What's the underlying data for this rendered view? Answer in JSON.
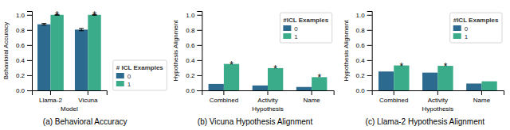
{
  "chart_data": [
    {
      "type": "bar",
      "title": "(a) Behavioral Accuracy",
      "xlabel": "Model",
      "ylabel": "Behavioral Accuracy",
      "categories": [
        "Llama-2",
        "Vicuna"
      ],
      "series": [
        {
          "name": "0",
          "color": "#2d6a8f",
          "values": [
            0.875,
            0.805
          ],
          "errors": [
            0.01,
            0.015
          ]
        },
        {
          "name": "1",
          "color": "#3aac8a",
          "values": [
            1.0,
            1.0
          ],
          "errors": [
            0.005,
            0.005
          ],
          "annotations": [
            "*",
            "*"
          ]
        }
      ],
      "ylim": [
        0,
        1.05
      ],
      "yticks": [
        {
          "value": 0,
          "label": "0.0"
        },
        0.2,
        0.4,
        0.6,
        0.8,
        {
          "value": 1.0,
          "label": "1.0"
        }
      ],
      "grid": false,
      "legend": "lower-right",
      "legend_title": "# ICL Examples"
    },
    {
      "type": "bar",
      "title": "(b) Vicuna Hypothesis Alignment",
      "xlabel": "Hypothesis",
      "ylabel": "Hypothesis Alignment",
      "categories": [
        "Combined",
        "Activity",
        "Name"
      ],
      "series": [
        {
          "name": "0",
          "color": "#2d6a8f",
          "values": [
            0.085,
            0.065,
            0.045
          ]
        },
        {
          "name": "1",
          "color": "#3aac8a",
          "values": [
            0.35,
            0.295,
            0.175
          ],
          "annotations": [
            "*",
            "*",
            "*"
          ]
        }
      ],
      "ylim": [
        0,
        1.05
      ],
      "yticks": [
        {
          "value": 0,
          "label": "0.0"
        },
        0.2,
        0.4,
        0.6,
        0.8,
        {
          "value": 1.0,
          "label": "1.0"
        }
      ],
      "grid": false,
      "legend": "upper-right",
      "legend_title": "#ICL Examples"
    },
    {
      "type": "bar",
      "title": "(c) Llama-2 Hypothesis Alignment",
      "xlabel": "Hypothesis",
      "ylabel": "Hypothesis Alignment",
      "categories": [
        "Combined",
        "Activity",
        "Name"
      ],
      "series": [
        {
          "name": "0",
          "color": "#2d6a8f",
          "values": [
            0.25,
            0.235,
            0.09
          ]
        },
        {
          "name": "1",
          "color": "#3aac8a",
          "values": [
            0.33,
            0.325,
            0.12
          ],
          "annotations": [
            "*",
            "*",
            null
          ]
        }
      ],
      "ylim": [
        0,
        1.05
      ],
      "yticks": [
        {
          "value": 0,
          "label": "0.0"
        },
        0.2,
        0.4,
        0.6,
        0.8,
        {
          "value": 1.0,
          "label": "1.0"
        }
      ],
      "grid": false,
      "legend": "upper-right",
      "legend_title": "#ICL Examples"
    }
  ]
}
